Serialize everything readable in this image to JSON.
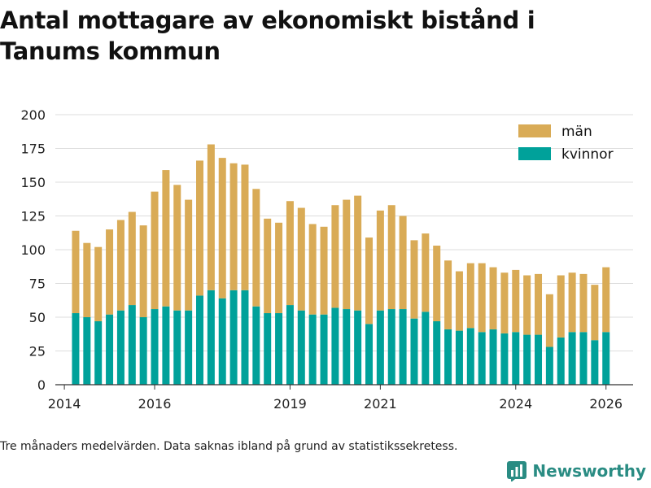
{
  "title": "Antal mottagare av ekonomiskt bistånd i Tanums kommun",
  "footnote": "Tre månaders medelvärden. Data saknas ibland på grund av statistikssekretess.",
  "brand": {
    "name": "Newsworthy",
    "icon": "newsworthy-logo-icon"
  },
  "colors": {
    "men": "#d9ab56",
    "women": "#00a19a",
    "grid": "#dddddd",
    "axis": "#333333",
    "brand": "#2a8c83"
  },
  "chart_data": {
    "type": "bar",
    "stacked": true,
    "xlabel": "",
    "ylabel": "",
    "ylim": [
      0,
      200
    ],
    "y_ticks": [
      0,
      25,
      50,
      75,
      100,
      125,
      150,
      175,
      200
    ],
    "x_range": [
      2013.8,
      2026.6
    ],
    "x_ticks": [
      2014,
      2016,
      2019,
      2021,
      2024,
      2026
    ],
    "legend": {
      "position": "top-right",
      "entries": [
        "män",
        "kvinnor"
      ]
    },
    "x": [
      2014.25,
      2014.5,
      2014.75,
      2015.0,
      2015.25,
      2015.5,
      2015.75,
      2016.0,
      2016.25,
      2016.5,
      2016.75,
      2017.0,
      2017.25,
      2017.5,
      2017.75,
      2018.0,
      2018.25,
      2018.5,
      2018.75,
      2019.0,
      2019.25,
      2019.5,
      2019.75,
      2020.0,
      2020.25,
      2020.5,
      2020.75,
      2021.0,
      2021.25,
      2021.5,
      2021.75,
      2022.0,
      2022.25,
      2022.5,
      2022.75,
      2023.0,
      2023.25,
      2023.5,
      2023.75,
      2024.0,
      2024.25,
      2024.5,
      2024.75,
      2025.0,
      2025.25,
      2025.5,
      2025.75,
      2026.0
    ],
    "series": [
      {
        "name": "kvinnor",
        "values": [
          53,
          50,
          47,
          52,
          55,
          59,
          50,
          56,
          58,
          55,
          55,
          66,
          70,
          64,
          70,
          70,
          58,
          53,
          53,
          59,
          55,
          52,
          52,
          57,
          56,
          55,
          45,
          55,
          56,
          56,
          49,
          54,
          47,
          41,
          40,
          42,
          39,
          41,
          38,
          39,
          37,
          37,
          28,
          35,
          39,
          39,
          33,
          39
        ]
      },
      {
        "name": "män",
        "values": [
          61,
          55,
          55,
          63,
          67,
          69,
          68,
          87,
          101,
          93,
          82,
          100,
          108,
          104,
          94,
          93,
          87,
          70,
          67,
          77,
          76,
          67,
          65,
          76,
          81,
          85,
          64,
          74,
          77,
          69,
          58,
          58,
          56,
          51,
          44,
          48,
          51,
          46,
          45,
          46,
          44,
          45,
          39,
          46,
          44,
          43,
          41,
          48
        ]
      }
    ]
  }
}
